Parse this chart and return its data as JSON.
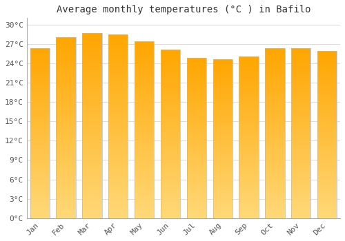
{
  "title": "Average monthly temperatures (°C ) in Bafilo",
  "months": [
    "Jan",
    "Feb",
    "Mar",
    "Apr",
    "May",
    "Jun",
    "Jul",
    "Aug",
    "Sep",
    "Oct",
    "Nov",
    "Dec"
  ],
  "values": [
    26.3,
    28.0,
    28.7,
    28.5,
    27.4,
    26.1,
    24.8,
    24.6,
    25.1,
    26.3,
    26.3,
    25.9
  ],
  "bar_color_top": "#FFA500",
  "bar_color_bottom": "#FFD878",
  "bar_edge_color": "#BBBBBB",
  "background_color": "#FFFFFF",
  "grid_color": "#DDDDDD",
  "ylim": [
    0,
    31
  ],
  "yticks": [
    0,
    3,
    6,
    9,
    12,
    15,
    18,
    21,
    24,
    27,
    30
  ],
  "ytick_labels": [
    "0°C",
    "3°C",
    "6°C",
    "9°C",
    "12°C",
    "15°C",
    "18°C",
    "21°C",
    "24°C",
    "27°C",
    "30°C"
  ],
  "title_fontsize": 10,
  "tick_fontsize": 8,
  "figsize": [
    5.0,
    3.5
  ],
  "dpi": 100,
  "bar_width": 0.75
}
